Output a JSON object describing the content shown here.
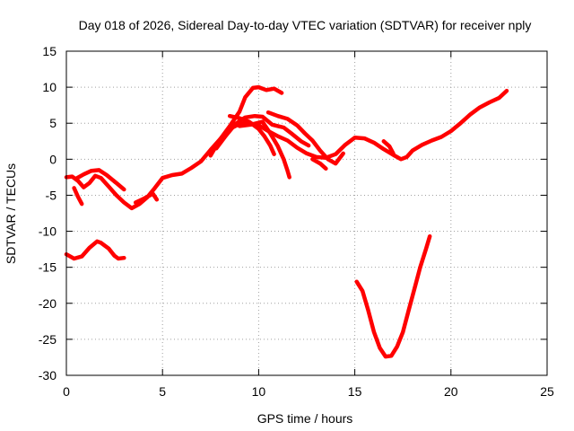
{
  "chart_data": {
    "type": "line",
    "title": "Day 018 of 2026, Sidereal Day-to-day VTEC variation (SDTVAR) for receiver nply",
    "xlabel": "GPS time / hours",
    "ylabel": "SDTVAR / TECUs",
    "xlim": [
      0,
      25
    ],
    "ylim": [
      -30,
      15
    ],
    "xticks": [
      0,
      5,
      10,
      15,
      20,
      25
    ],
    "yticks": [
      -30,
      -25,
      -20,
      -15,
      -10,
      -5,
      0,
      5,
      10,
      15
    ],
    "grid": true,
    "legend": "none",
    "line_color": "#ff0000",
    "grid_color": "#a0a0a0",
    "series": [
      {
        "name": "track-1",
        "points": [
          [
            0,
            -2.5
          ],
          [
            0.3,
            -2.4
          ],
          [
            0.6,
            -3.0
          ],
          [
            0.9,
            -3.9
          ],
          [
            1.2,
            -3.3
          ],
          [
            1.5,
            -2.3
          ],
          [
            1.8,
            -2.6
          ],
          [
            2.2,
            -3.8
          ],
          [
            2.6,
            -5.0
          ],
          [
            3.0,
            -6.0
          ],
          [
            3.4,
            -6.8
          ],
          [
            3.8,
            -6.2
          ],
          [
            4.2,
            -5.3
          ],
          [
            4.6,
            -4.0
          ],
          [
            5.0,
            -2.6
          ],
          [
            5.5,
            -2.2
          ],
          [
            6.0,
            -2.0
          ],
          [
            6.5,
            -1.2
          ],
          [
            7.0,
            -0.3
          ],
          [
            7.5,
            1.3
          ],
          [
            8.0,
            2.8
          ],
          [
            8.5,
            4.2
          ],
          [
            9.0,
            4.9
          ],
          [
            9.5,
            5.0
          ],
          [
            10.0,
            4.7
          ],
          [
            10.5,
            3.9
          ],
          [
            11.0,
            3.2
          ],
          [
            11.5,
            2.6
          ],
          [
            12.0,
            1.6
          ],
          [
            12.5,
            0.8
          ],
          [
            13.0,
            0.3
          ],
          [
            13.5,
            0.2
          ],
          [
            14.0,
            0.7
          ],
          [
            14.5,
            2.0
          ],
          [
            15.0,
            3.0
          ],
          [
            15.5,
            2.9
          ],
          [
            16.0,
            2.3
          ],
          [
            16.5,
            1.4
          ],
          [
            17.0,
            0.6
          ],
          [
            17.4,
            0.0
          ],
          [
            17.7,
            0.3
          ],
          [
            18.0,
            1.2
          ],
          [
            18.5,
            2.0
          ],
          [
            19.0,
            2.6
          ],
          [
            19.5,
            3.1
          ],
          [
            20.0,
            3.9
          ],
          [
            20.5,
            5.0
          ],
          [
            21.0,
            6.2
          ],
          [
            21.5,
            7.2
          ],
          [
            22.0,
            7.9
          ],
          [
            22.5,
            8.5
          ],
          [
            22.9,
            9.5
          ]
        ]
      },
      {
        "name": "track-2",
        "points": [
          [
            0.5,
            -2.7
          ],
          [
            0.9,
            -2.1
          ],
          [
            1.3,
            -1.6
          ],
          [
            1.7,
            -1.5
          ],
          [
            2.1,
            -2.2
          ],
          [
            2.6,
            -3.3
          ],
          [
            3.0,
            -4.2
          ]
        ]
      },
      {
        "name": "track-3",
        "points": [
          [
            0.4,
            -4.0
          ],
          [
            0.6,
            -5.2
          ],
          [
            0.8,
            -6.2
          ]
        ]
      },
      {
        "name": "track-4",
        "points": [
          [
            3.6,
            -6.0
          ],
          [
            4.0,
            -5.5
          ],
          [
            4.5,
            -4.8
          ],
          [
            4.7,
            -5.6
          ]
        ]
      },
      {
        "name": "track-5",
        "points": [
          [
            7.5,
            0.5
          ],
          [
            8.0,
            2.8
          ],
          [
            8.5,
            4.6
          ],
          [
            9.0,
            6.6
          ],
          [
            9.3,
            8.6
          ],
          [
            9.7,
            9.9
          ],
          [
            10.0,
            10.0
          ],
          [
            10.4,
            9.6
          ],
          [
            10.8,
            9.8
          ],
          [
            11.2,
            9.2
          ]
        ]
      },
      {
        "name": "track-6",
        "points": [
          [
            7.8,
            1.5
          ],
          [
            8.3,
            3.3
          ],
          [
            8.8,
            4.9
          ],
          [
            9.3,
            5.8
          ],
          [
            9.8,
            6.0
          ],
          [
            10.2,
            5.9
          ],
          [
            10.7,
            4.8
          ],
          [
            11.0,
            4.6
          ],
          [
            11.3,
            4.4
          ],
          [
            11.7,
            3.6
          ],
          [
            12.2,
            2.5
          ],
          [
            12.6,
            1.9
          ]
        ]
      },
      {
        "name": "track-7",
        "points": [
          [
            8.5,
            6.0
          ],
          [
            9.0,
            5.7
          ],
          [
            9.5,
            5.2
          ],
          [
            10.0,
            4.2
          ],
          [
            10.3,
            3.2
          ],
          [
            10.6,
            1.9
          ],
          [
            10.8,
            0.7
          ]
        ]
      },
      {
        "name": "track-8",
        "points": [
          [
            9.0,
            4.6
          ],
          [
            9.6,
            4.8
          ],
          [
            10.2,
            5.2
          ],
          [
            10.6,
            3.6
          ],
          [
            11.0,
            1.8
          ],
          [
            11.3,
            0.0
          ],
          [
            11.5,
            -1.6
          ],
          [
            11.6,
            -2.5
          ]
        ]
      },
      {
        "name": "track-9",
        "points": [
          [
            10.5,
            6.5
          ],
          [
            11.0,
            6.0
          ],
          [
            11.5,
            5.6
          ],
          [
            12.0,
            4.7
          ],
          [
            12.4,
            3.6
          ],
          [
            12.8,
            2.6
          ],
          [
            13.2,
            1.2
          ],
          [
            13.6,
            0.0
          ],
          [
            14.0,
            -0.6
          ],
          [
            14.4,
            0.8
          ]
        ]
      },
      {
        "name": "track-10",
        "points": [
          [
            12.8,
            0.0
          ],
          [
            13.2,
            -0.6
          ],
          [
            13.5,
            -1.3
          ]
        ]
      },
      {
        "name": "track-11",
        "points": [
          [
            16.5,
            2.5
          ],
          [
            16.8,
            1.8
          ],
          [
            17.0,
            0.8
          ]
        ]
      },
      {
        "name": "track-12",
        "points": [
          [
            0,
            -13.2
          ],
          [
            0.4,
            -13.8
          ],
          [
            0.8,
            -13.5
          ],
          [
            1.2,
            -12.3
          ],
          [
            1.6,
            -11.4
          ],
          [
            1.8,
            -11.6
          ],
          [
            2.2,
            -12.4
          ],
          [
            2.5,
            -13.4
          ],
          [
            2.7,
            -13.8
          ],
          [
            3.0,
            -13.7
          ]
        ]
      },
      {
        "name": "track-13",
        "points": [
          [
            15.1,
            -17.0
          ],
          [
            15.4,
            -18.3
          ],
          [
            15.7,
            -21.0
          ],
          [
            16.0,
            -24.0
          ],
          [
            16.3,
            -26.2
          ],
          [
            16.6,
            -27.4
          ],
          [
            16.9,
            -27.3
          ],
          [
            17.2,
            -26.0
          ],
          [
            17.5,
            -24.0
          ],
          [
            17.8,
            -21.0
          ],
          [
            18.1,
            -18.0
          ],
          [
            18.4,
            -15.0
          ],
          [
            18.7,
            -12.5
          ],
          [
            18.9,
            -10.7
          ]
        ]
      }
    ]
  }
}
